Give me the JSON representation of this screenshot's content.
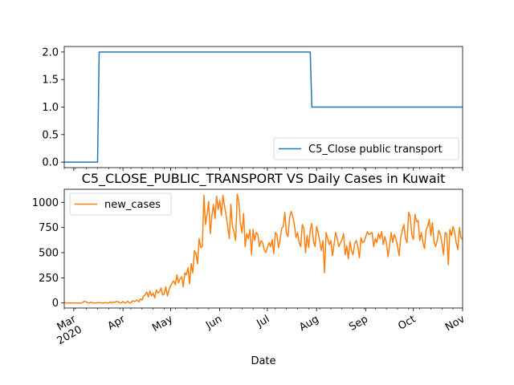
{
  "chart_data": [
    {
      "type": "line",
      "title": "",
      "xlabel": "",
      "ylabel": "",
      "ylim": [
        -0.1,
        2.1
      ],
      "yticks": [
        0.0,
        0.5,
        1.0,
        1.5,
        2.0
      ],
      "ytick_labels": [
        "0.0",
        "0.5",
        "1.0",
        "1.5",
        "2.0"
      ],
      "xlim": [
        "2020-02-24",
        "2020-11-01"
      ],
      "grid": false,
      "legend": "lower-right",
      "series": [
        {
          "name": "C5_Close public transport",
          "color": "#1f77b4",
          "x": [
            "2020-02-24",
            "2020-03-16",
            "2020-03-17",
            "2020-07-28",
            "2020-07-29",
            "2020-11-01"
          ],
          "y": [
            0,
            0,
            2,
            2,
            1,
            1
          ]
        }
      ]
    },
    {
      "type": "line",
      "title": "C5_CLOSE_PUBLIC_TRANSPORT VS Daily Cases in Kuwait",
      "xlabel": "Date",
      "ylabel": "",
      "ylim": [
        -50,
        1130
      ],
      "yticks": [
        0,
        250,
        500,
        750,
        1000
      ],
      "ytick_labels": [
        "0",
        "250",
        "500",
        "750",
        "1000"
      ],
      "xlim": [
        "2020-02-24",
        "2020-11-01"
      ],
      "xticks": [
        "2020-03-01",
        "2020-04-01",
        "2020-05-01",
        "2020-06-01",
        "2020-07-01",
        "2020-08-01",
        "2020-09-01",
        "2020-10-01",
        "2020-11-01"
      ],
      "xtick_labels": [
        "Mar\n2020",
        "Apr",
        "May",
        "Jun",
        "Jul",
        "Aug",
        "Sep",
        "Oct",
        "Nov"
      ],
      "grid": false,
      "legend": "upper-left",
      "series": [
        {
          "name": "new_cases",
          "color": "#ff7f0e",
          "start_date": "2020-02-24",
          "values": [
            5,
            0,
            0,
            0,
            0,
            0,
            0,
            0,
            0,
            0,
            0,
            0,
            10,
            18,
            9,
            0,
            0,
            8,
            0,
            0,
            0,
            4,
            3,
            2,
            0,
            0,
            5,
            0,
            0,
            12,
            0,
            10,
            7,
            15,
            12,
            0,
            3,
            14,
            0,
            4,
            18,
            2,
            0,
            22,
            15,
            20,
            28,
            12,
            40,
            30,
            70,
            80,
            108,
            60,
            118,
            70,
            98,
            50,
            130,
            100,
            110,
            150,
            80,
            90,
            160,
            70,
            130,
            170,
            200,
            220,
            180,
            280,
            200,
            240,
            260,
            160,
            300,
            280,
            350,
            190,
            390,
            300,
            520,
            490,
            390,
            640,
            550,
            560,
            1070,
            780,
            880,
            1010,
            690,
            860,
            980,
            840,
            1060,
            930,
            1020,
            870,
            1070,
            960,
            870,
            760,
            640,
            980,
            760,
            700,
            620,
            1080,
            1010,
            790,
            700,
            890,
            560,
            690,
            640,
            730,
            480,
            730,
            620,
            700,
            680,
            560,
            620,
            600,
            530,
            500,
            550,
            600,
            560,
            630,
            490,
            700,
            680,
            550,
            630,
            740,
            760,
            900,
            690,
            660,
            850,
            910,
            860,
            780,
            650,
            700,
            600,
            560,
            780,
            740,
            500,
            670,
            550,
            730,
            790,
            620,
            560,
            760,
            700,
            610,
            520,
            620,
            300,
            700,
            640,
            580,
            620,
            470,
            580,
            700,
            640,
            560,
            600,
            630,
            690,
            480,
            570,
            440,
            610,
            520,
            480,
            590,
            620,
            560,
            450,
            650,
            600,
            610,
            660,
            710,
            680,
            690,
            700,
            560,
            640,
            600,
            690,
            640,
            710,
            580,
            660,
            600,
            460,
            570,
            700,
            600,
            680,
            640,
            560,
            470,
            650,
            720,
            780,
            640,
            600,
            900,
            860,
            680,
            630,
            880,
            810,
            820,
            620,
            700,
            600,
            540,
            730,
            760,
            830,
            670,
            800,
            610,
            560,
            620,
            720,
            680,
            590,
            480,
            700,
            690,
            380,
            730,
            670,
            760,
            700,
            600,
            530,
            750,
            650,
            630,
            580,
            590,
            520,
            350,
            560,
            620,
            580,
            470,
            540,
            630,
            400,
            580,
            660,
            510,
            470,
            740,
            720,
            600,
            660,
            590,
            530,
            650,
            770,
            850,
            720,
            740,
            700,
            740,
            640,
            890,
            790,
            880,
            720,
            700,
            800,
            810,
            750,
            650,
            600
          ]
        }
      ]
    }
  ]
}
